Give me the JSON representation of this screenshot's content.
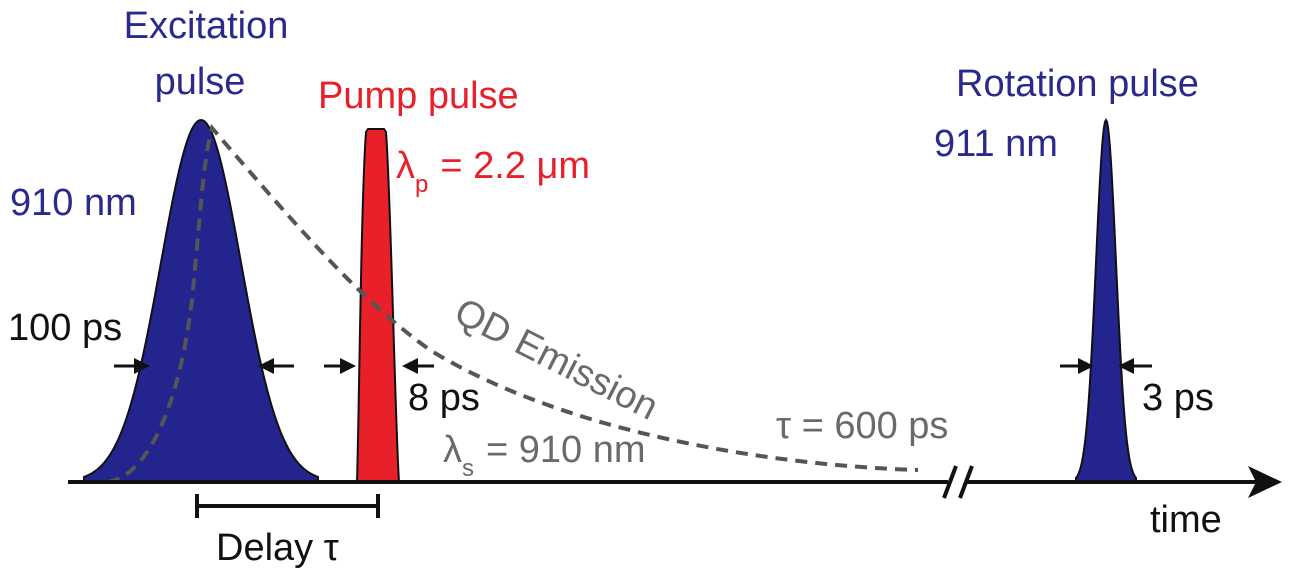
{
  "colors": {
    "excitation": "#24248f",
    "pump": "#e8202a",
    "emission": "#555555",
    "axis": "#111111",
    "text_dark": "#111111",
    "text_blue": "#2a2a8c",
    "text_red": "#e8202a",
    "text_gray": "#6a6a6a"
  },
  "excitation": {
    "title_line1": "Excitation",
    "title_line2": "pulse",
    "wavelength": "910 nm",
    "width": "100 ps"
  },
  "pump": {
    "title": "Pump pulse",
    "lambda_symbol": "λ",
    "lambda_sub": "p",
    "lambda_value": "= 2.2 μm",
    "width": "8 ps"
  },
  "emission": {
    "label": "QD Emission",
    "tau": "τ = 600 ps",
    "lambda_symbol": "λ",
    "lambda_sub": "s",
    "lambda_value": "= 910 nm"
  },
  "rotation": {
    "title": "Rotation pulse",
    "wavelength": "911 nm",
    "width": "3 ps"
  },
  "axis": {
    "label": "time",
    "delay_label": "Delay τ"
  }
}
